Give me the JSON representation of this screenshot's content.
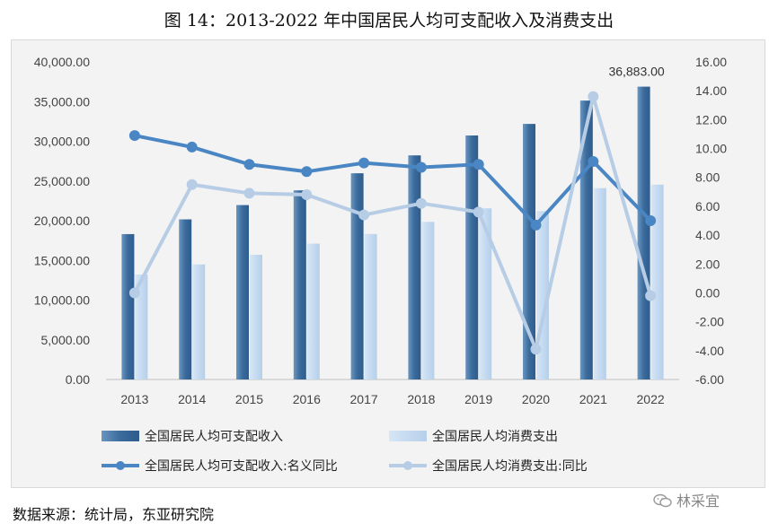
{
  "title": "图 14：2013-2022 年中国居民人均可支配收入及消费支出",
  "source": "数据来源：统计局，东亚研究院",
  "watermark": "林采宜",
  "chart_data": {
    "type": "bar",
    "categories": [
      "2013",
      "2014",
      "2015",
      "2016",
      "2017",
      "2018",
      "2019",
      "2020",
      "2021",
      "2022"
    ],
    "series": [
      {
        "name": "全国居民人均可支配收入",
        "kind": "bar",
        "axis": "left",
        "color": "#3d6e9e",
        "values": [
          18311,
          20167,
          21966,
          23821,
          25974,
          28228,
          30733,
          32189,
          35128,
          36883
        ]
      },
      {
        "name": "全国居民人均消费支出",
        "kind": "bar",
        "axis": "left",
        "color": "#bdd5ee",
        "values": [
          13220,
          14491,
          15712,
          17111,
          18322,
          19853,
          21559,
          21210,
          24100,
          24538
        ]
      },
      {
        "name": "全国居民人均可支配收入:名义同比",
        "kind": "line",
        "axis": "right",
        "color": "#4a86c3",
        "values": [
          10.9,
          10.1,
          8.9,
          8.4,
          9.0,
          8.7,
          8.9,
          4.7,
          9.1,
          5.0
        ]
      },
      {
        "name": "全国居民人均消费支出:同比",
        "kind": "line",
        "axis": "right",
        "color": "#b7cde6",
        "values": [
          0.0,
          7.5,
          6.9,
          6.8,
          5.4,
          6.2,
          5.6,
          -3.9,
          13.6,
          -0.2
        ]
      }
    ],
    "y_left": {
      "min": 0,
      "max": 40000,
      "ticks": [
        "0.00",
        "5,000.00",
        "10,000.00",
        "15,000.00",
        "20,000.00",
        "25,000.00",
        "30,000.00",
        "35,000.00",
        "40,000.00"
      ]
    },
    "y_right": {
      "min": -6,
      "max": 16,
      "ticks": [
        "-6.00",
        "-4.00",
        "-2.00",
        "0.00",
        "2.00",
        "4.00",
        "6.00",
        "8.00",
        "10.00",
        "12.00",
        "14.00",
        "16.00"
      ]
    },
    "annotation": "36,883.00",
    "grid": false,
    "legend_position": "bottom"
  }
}
